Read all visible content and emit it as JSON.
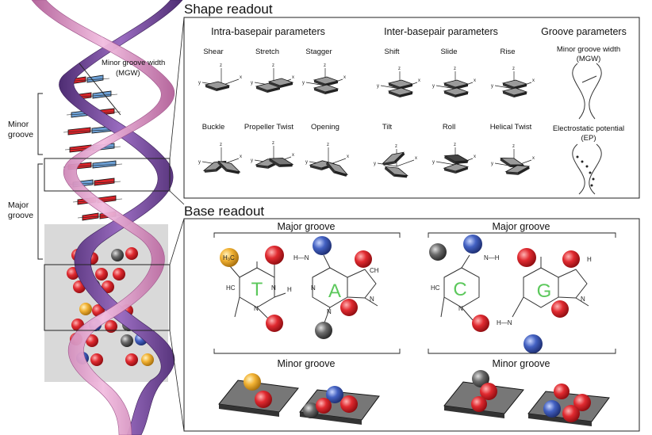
{
  "helix": {
    "mgw_label_line1": "Minor groove width",
    "mgw_label_line2": "(MGW)",
    "minor_label_line1": "Minor",
    "minor_label_line2": "groove",
    "major_label_line1": "Major",
    "major_label_line2": "groove"
  },
  "shape_readout": {
    "title": "Shape readout",
    "intra": {
      "header": "Intra-basepair parameters",
      "params": [
        "Shear",
        "Stretch",
        "Stagger",
        "Buckle",
        "Propeller Twist",
        "Opening"
      ]
    },
    "inter": {
      "header": "Inter-basepair parameters",
      "params": [
        "Shift",
        "Slide",
        "Rise",
        "Tilt",
        "Roll",
        "Helical Twist"
      ]
    },
    "groove": {
      "header": "Groove parameters",
      "mgw_line1": "Minor groove width",
      "mgw_line2": "(MGW)",
      "ep_line1": "Electrostatic potential",
      "ep_line2": "(EP)"
    },
    "axis_labels": {
      "x": "x",
      "y": "y",
      "z": "z"
    }
  },
  "base_readout": {
    "title": "Base readout",
    "major_groove_label": "Major groove",
    "minor_groove_label": "Minor groove",
    "pair_left": {
      "base1": "T",
      "base2": "A",
      "methyl": "H₃C"
    },
    "pair_right": {
      "base1": "C",
      "base2": "G"
    },
    "atoms": {
      "N": "N",
      "H": "H",
      "HC": "HC",
      "CH": "CH",
      "NH": "N—H",
      "HN": "H—N"
    }
  },
  "colors": {
    "helix_purple": "#7d4f9e",
    "helix_pink": "#d98cc0",
    "base_red": "#d9242a",
    "base_blue": "#6c9fd4",
    "highlight_gray": "#d9d9d9",
    "atom_red": "#d8232a",
    "atom_blue": "#3b5bb5",
    "atom_gray": "#555555",
    "atom_yellow": "#f0b030",
    "letter_green": "#5cc85c"
  }
}
